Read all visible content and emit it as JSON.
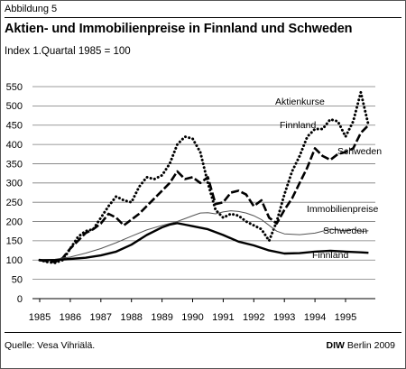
{
  "figure": {
    "label": "Abbildung 5",
    "title": "Aktien- und Immobilienpreise in Finnland und Schweden",
    "subtitle": "Index 1.Quartal 1985 = 100",
    "source": "Quelle: Vesa Vihriälä.",
    "credit_brand": "DIW",
    "credit_rest": " Berlin 2009"
  },
  "chart_data": {
    "type": "line",
    "title": "Aktien- und Immobilienpreise in Finnland und Schweden",
    "subtitle": "Index 1.Quartal 1985 = 100",
    "xlabel": "",
    "ylabel": "",
    "xlim": [
      1985,
      1996
    ],
    "ylim": [
      0,
      550
    ],
    "y_ticks": [
      0,
      50,
      100,
      150,
      200,
      250,
      300,
      350,
      400,
      450,
      500,
      550
    ],
    "x_ticks": [
      "1985",
      "1986",
      "1987",
      "1988",
      "1989",
      "1990",
      "1991",
      "1992",
      "1993",
      "1994",
      "1995"
    ],
    "grid": "horizontal",
    "group_labels": {
      "stocks": "Aktienkurse",
      "housing": "Immobilienpreise"
    },
    "series": [
      {
        "name": "Finnland",
        "group": "stocks",
        "style": "dotted",
        "color": "#000000",
        "x": [
          1985.0,
          1985.25,
          1985.5,
          1985.75,
          1986.0,
          1986.25,
          1986.5,
          1986.75,
          1987.0,
          1987.25,
          1987.5,
          1987.75,
          1988.0,
          1988.25,
          1988.5,
          1988.75,
          1989.0,
          1989.25,
          1989.5,
          1989.75,
          1990.0,
          1990.25,
          1990.5,
          1990.75,
          1991.0,
          1991.25,
          1991.5,
          1991.75,
          1992.0,
          1992.25,
          1992.5,
          1992.75,
          1993.0,
          1993.25,
          1993.5,
          1993.75,
          1994.0,
          1994.25,
          1994.5,
          1994.75,
          1995.0,
          1995.25,
          1995.5,
          1995.75
        ],
        "values": [
          100,
          95,
          93,
          100,
          130,
          160,
          175,
          180,
          210,
          240,
          265,
          255,
          250,
          290,
          315,
          310,
          320,
          350,
          400,
          420,
          415,
          380,
          300,
          230,
          210,
          220,
          215,
          200,
          190,
          180,
          150,
          200,
          270,
          330,
          370,
          420,
          440,
          440,
          465,
          460,
          420,
          460,
          535,
          450
        ]
      },
      {
        "name": "Schweden",
        "group": "stocks",
        "style": "dashed",
        "color": "#000000",
        "x": [
          1985.0,
          1985.25,
          1985.5,
          1985.75,
          1986.0,
          1986.25,
          1986.5,
          1986.75,
          1987.0,
          1987.25,
          1987.5,
          1987.75,
          1988.0,
          1988.25,
          1988.5,
          1988.75,
          1989.0,
          1989.25,
          1989.5,
          1989.75,
          1990.0,
          1990.25,
          1990.5,
          1990.75,
          1991.0,
          1991.25,
          1991.5,
          1991.75,
          1992.0,
          1992.25,
          1992.5,
          1992.75,
          1993.0,
          1993.25,
          1993.5,
          1993.75,
          1994.0,
          1994.25,
          1994.5,
          1994.75,
          1995.0,
          1995.25,
          1995.5,
          1995.75
        ],
        "values": [
          100,
          97,
          95,
          105,
          130,
          150,
          170,
          180,
          195,
          220,
          210,
          190,
          205,
          220,
          240,
          260,
          280,
          300,
          330,
          310,
          315,
          300,
          315,
          245,
          250,
          275,
          280,
          270,
          240,
          255,
          210,
          195,
          230,
          260,
          300,
          340,
          390,
          370,
          360,
          375,
          380,
          390,
          430,
          450
        ]
      },
      {
        "name": "Schweden",
        "group": "housing",
        "style": "thin",
        "color": "#555555",
        "x": [
          1985.0,
          1985.5,
          1986.0,
          1986.5,
          1987.0,
          1987.5,
          1988.0,
          1988.5,
          1989.0,
          1989.5,
          1990.0,
          1990.25,
          1990.5,
          1990.75,
          1991.0,
          1991.25,
          1991.5,
          1991.75,
          1992.0,
          1992.25,
          1992.5,
          1992.75,
          1993.0,
          1993.5,
          1994.0,
          1994.5,
          1995.0,
          1995.25,
          1995.5,
          1995.75
        ],
        "values": [
          100,
          102,
          108,
          118,
          130,
          145,
          162,
          178,
          190,
          200,
          215,
          222,
          223,
          220,
          225,
          228,
          226,
          222,
          215,
          205,
          190,
          175,
          168,
          166,
          170,
          180,
          176,
          180,
          174,
          176
        ]
      },
      {
        "name": "Finnland",
        "group": "housing",
        "style": "solid-thick",
        "color": "#000000",
        "x": [
          1985.0,
          1985.5,
          1986.0,
          1986.5,
          1987.0,
          1987.5,
          1988.0,
          1988.5,
          1989.0,
          1989.25,
          1989.5,
          1989.75,
          1990.0,
          1990.5,
          1991.0,
          1991.5,
          1992.0,
          1992.5,
          1993.0,
          1993.5,
          1994.0,
          1994.5,
          1995.0,
          1995.5,
          1995.75
        ],
        "values": [
          100,
          100,
          103,
          106,
          112,
          122,
          140,
          165,
          185,
          192,
          196,
          192,
          188,
          180,
          165,
          148,
          138,
          125,
          117,
          118,
          122,
          124,
          122,
          120,
          119
        ]
      }
    ],
    "annotations": [
      "Aktienkurse",
      "Finnland",
      "Schweden",
      "Immobilienpreise",
      "Schweden",
      "Finnland"
    ]
  }
}
